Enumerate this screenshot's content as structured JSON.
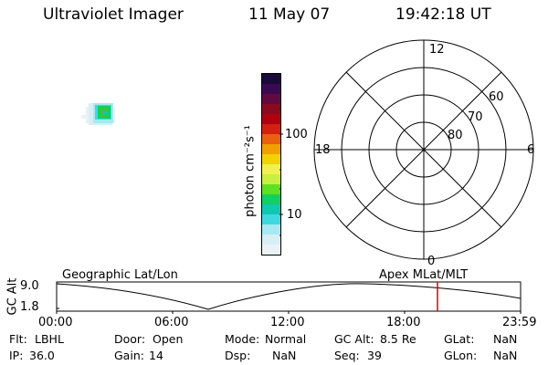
{
  "header": {
    "instrument": "Ultraviolet Imager",
    "date": "11 May 07",
    "time": "19:42:18 UT"
  },
  "colorbar": {
    "unit_label": "photon cm⁻²s⁻¹",
    "tick_100": "100",
    "tick_10": "10",
    "colors": [
      "#1a0a3a",
      "#3a0a50",
      "#600a40",
      "#8a0a20",
      "#b00010",
      "#d42010",
      "#e86010",
      "#f0a000",
      "#f2d200",
      "#f0f050",
      "#c8f040",
      "#60e020",
      "#10d060",
      "#10c8b0",
      "#40d8e0",
      "#a8e8f0",
      "#d8eef4",
      "#ebf2f5"
    ]
  },
  "polar": {
    "mlt_12": "12",
    "mlt_18": "18",
    "mlt_6": "6",
    "mlt_0": "0",
    "lat_60": "60",
    "lat_70": "70",
    "lat_80": "80"
  },
  "orbit": {
    "left_label": "Geographic Lat/Lon",
    "right_label": "Apex MLat/MLT",
    "axis_label": "GC Alt",
    "y_top": "9.0",
    "y_bottom": "1.8",
    "x_ticks": [
      "00:00",
      "06:00",
      "12:00",
      "18:00",
      "23:59"
    ],
    "current_marker_color": "#e00000"
  },
  "info": {
    "filter_label": "Flt:",
    "filter_value": "LBHL",
    "door_label": "Door:",
    "door_value": "Open",
    "mode_label": "Mode:",
    "mode_value": "Normal",
    "gcalt_label": "GC Alt:",
    "gcalt_value": "8.5 Re",
    "glat_label": "GLat:",
    "glat_value": "NaN",
    "ip_label": "IP:",
    "ip_value": "36.0",
    "gain_label": "Gain:",
    "gain_value": "14",
    "dsp_label": "Dsp:",
    "dsp_value": "NaN",
    "seq_label": "Seq:",
    "seq_value": "39",
    "glon_label": "GLon:",
    "glon_value": "NaN"
  }
}
